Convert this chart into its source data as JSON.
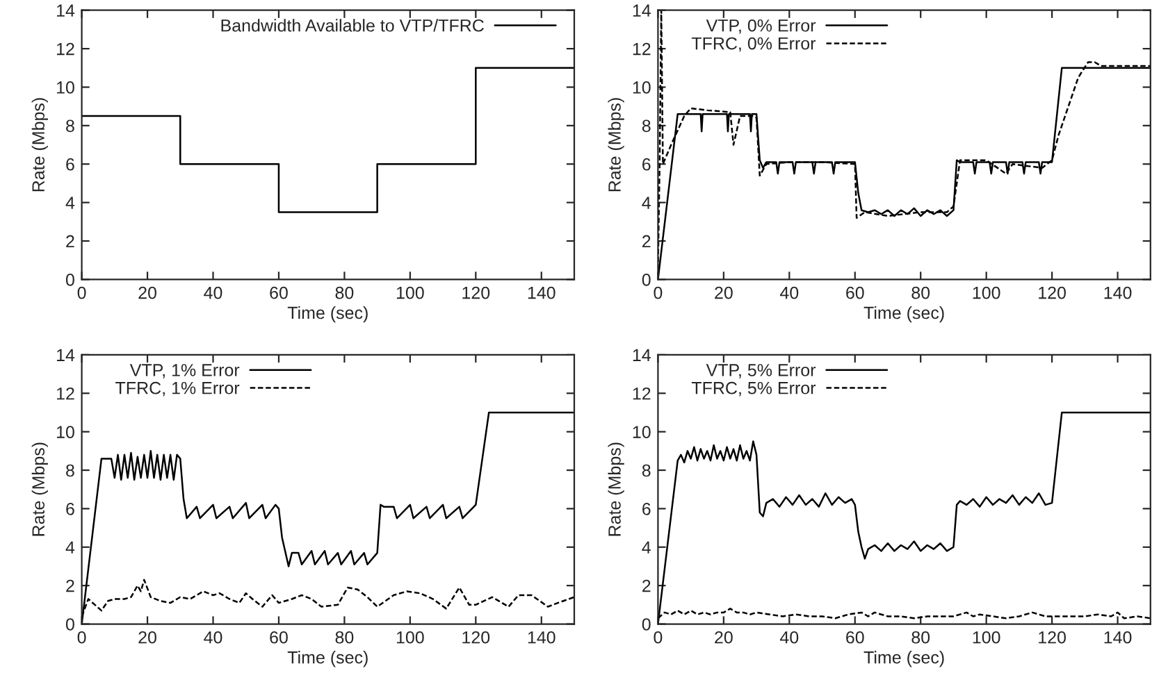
{
  "chart_data": [
    {
      "type": "line",
      "xlabel": "Time (sec)",
      "ylabel": "Rate (Mbps)",
      "xlim": [
        0,
        150
      ],
      "ylim": [
        0,
        14
      ],
      "xticks": [
        0,
        20,
        40,
        60,
        80,
        100,
        120,
        140
      ],
      "yticks": [
        0,
        2,
        4,
        6,
        8,
        10,
        12,
        14
      ],
      "grid": false,
      "legend": "top right",
      "series": [
        {
          "name": "Bandwidth Available to VTP/TFRC",
          "color": "#000000",
          "line_style": "solid",
          "x": [
            0,
            30,
            30,
            60,
            60,
            90,
            90,
            120,
            120,
            150
          ],
          "values": [
            8.5,
            8.5,
            6,
            6,
            3.5,
            3.5,
            6,
            6,
            11,
            11
          ]
        }
      ]
    },
    {
      "type": "line",
      "xlabel": "Time (sec)",
      "ylabel": "Rate (Mbps)",
      "xlim": [
        0,
        150
      ],
      "ylim": [
        0,
        14
      ],
      "xticks": [
        0,
        20,
        40,
        60,
        80,
        100,
        120,
        140
      ],
      "yticks": [
        0,
        2,
        4,
        6,
        8,
        10,
        12,
        14
      ],
      "grid": false,
      "legend": "top left",
      "series": [
        {
          "name": "VTP, 0% Error",
          "color": "#000000",
          "line_style": "solid",
          "x": [
            0,
            6,
            7,
            13,
            13.3,
            13.6,
            21,
            21.3,
            21.6,
            28,
            28.3,
            28.6,
            30,
            31,
            32,
            33,
            36,
            36.5,
            37,
            41,
            41.5,
            42,
            47,
            47.5,
            48,
            53,
            53.5,
            54,
            60,
            61,
            62,
            64,
            66,
            68,
            70,
            72,
            74,
            76,
            78,
            80,
            82,
            84,
            86,
            88,
            90,
            91,
            92,
            96,
            96.5,
            97,
            101,
            101.5,
            102,
            106,
            106.5,
            107,
            111,
            111.5,
            112,
            116,
            116.5,
            117,
            120,
            123,
            150
          ],
          "values": [
            0,
            8.6,
            8.6,
            8.6,
            7.7,
            8.6,
            8.6,
            7.7,
            8.6,
            8.6,
            7.7,
            8.6,
            8.6,
            6.2,
            5.8,
            6.1,
            6.1,
            5.5,
            6.1,
            6.1,
            5.5,
            6.1,
            6.1,
            5.5,
            6.1,
            6.1,
            5.5,
            6.1,
            6.1,
            4.5,
            3.6,
            3.5,
            3.6,
            3.4,
            3.6,
            3.3,
            3.6,
            3.4,
            3.7,
            3.3,
            3.6,
            3.4,
            3.6,
            3.3,
            3.6,
            6.2,
            6.1,
            6.1,
            5.5,
            6.1,
            6.1,
            5.5,
            6.1,
            6.1,
            5.5,
            6.1,
            6.1,
            5.5,
            6.1,
            6.1,
            5.5,
            6.1,
            6.1,
            11,
            11
          ]
        },
        {
          "name": "TFRC, 0% Error",
          "color": "#000000",
          "line_style": "dashed",
          "x": [
            0,
            0.5,
            1,
            1.5,
            4,
            8,
            10,
            15,
            22,
            23,
            25,
            29,
            30,
            31,
            33,
            40,
            50,
            60,
            60.5,
            63,
            70,
            80,
            88,
            90,
            92,
            100,
            106,
            108,
            117,
            120,
            122,
            125,
            128,
            131,
            133,
            135,
            150
          ],
          "values": [
            0.5,
            6,
            14,
            6,
            7,
            8.5,
            8.9,
            8.8,
            8.7,
            7,
            8.5,
            8.5,
            8.4,
            5.4,
            6,
            6.1,
            6.1,
            6,
            3.2,
            3.5,
            3.3,
            3.5,
            3.5,
            3.8,
            6.2,
            6.2,
            5.5,
            6,
            5.8,
            6.2,
            7.5,
            9,
            10.5,
            11.3,
            11.3,
            11.1,
            11.1
          ]
        }
      ]
    },
    {
      "type": "line",
      "xlabel": "Time (sec)",
      "ylabel": "Rate (Mbps)",
      "xlim": [
        0,
        150
      ],
      "ylim": [
        0,
        14
      ],
      "xticks": [
        0,
        20,
        40,
        60,
        80,
        100,
        120,
        140
      ],
      "yticks": [
        0,
        2,
        4,
        6,
        8,
        10,
        12,
        14
      ],
      "grid": false,
      "legend": "top left",
      "series": [
        {
          "name": "VTP, 1% Error",
          "color": "#000000",
          "line_style": "solid",
          "x": [
            0,
            6,
            9,
            10,
            11,
            12,
            13,
            14,
            15,
            16,
            17,
            18,
            19,
            20,
            21,
            22,
            23,
            24,
            25,
            26,
            27,
            28,
            29,
            30,
            31,
            32,
            35,
            36,
            40,
            41,
            45,
            46,
            50,
            51,
            55,
            56,
            59,
            60,
            61,
            63,
            64,
            66,
            67,
            70,
            71,
            74,
            75,
            78,
            79,
            82,
            83,
            86,
            87,
            90,
            91,
            92,
            95,
            96,
            100,
            101,
            105,
            106,
            110,
            111,
            115,
            116,
            120,
            124,
            150
          ],
          "values": [
            0,
            8.6,
            8.6,
            7.6,
            8.8,
            7.5,
            8.8,
            7.6,
            8.9,
            7.5,
            8.7,
            7.6,
            8.8,
            7.6,
            9,
            7.6,
            8.8,
            7.5,
            8.8,
            7.6,
            8.8,
            7.5,
            8.8,
            8.6,
            6.5,
            5.5,
            6.1,
            5.5,
            6.2,
            5.5,
            6.1,
            5.5,
            6.3,
            5.5,
            6.2,
            5.5,
            6.2,
            6,
            4.5,
            3,
            3.7,
            3.7,
            3.1,
            3.8,
            3.1,
            3.8,
            3.1,
            3.7,
            3.1,
            3.8,
            3.1,
            3.7,
            3.1,
            3.7,
            6.2,
            6.1,
            6.1,
            5.5,
            6.2,
            5.5,
            6.1,
            5.5,
            6.2,
            5.5,
            6.1,
            5.5,
            6.2,
            11,
            11
          ]
        },
        {
          "name": "TFRC, 1% Error",
          "color": "#000000",
          "line_style": "dashed",
          "x": [
            0,
            2,
            4,
            6,
            8,
            10,
            13,
            15,
            17,
            18,
            19,
            21,
            24,
            27,
            30,
            33,
            37,
            40,
            42,
            45,
            48,
            50,
            52,
            55,
            58,
            60,
            64,
            67,
            70,
            73,
            78,
            81,
            84,
            87,
            90,
            95,
            99,
            103,
            107,
            111,
            115,
            118,
            120,
            125,
            130,
            133,
            137,
            142,
            145,
            150
          ],
          "values": [
            0.4,
            1.3,
            1.0,
            0.7,
            1.2,
            1.3,
            1.3,
            1.4,
            2.0,
            1.7,
            2.3,
            1.4,
            1.2,
            1.1,
            1.4,
            1.3,
            1.7,
            1.5,
            1.6,
            1.3,
            1.1,
            1.6,
            1.3,
            0.9,
            1.5,
            1.1,
            1.3,
            1.5,
            1.3,
            0.9,
            1.0,
            1.9,
            1.8,
            1.4,
            0.9,
            1.5,
            1.7,
            1.6,
            1.3,
            0.8,
            1.9,
            1.0,
            1.0,
            1.4,
            0.9,
            1.5,
            1.5,
            0.9,
            1.1,
            1.4
          ]
        }
      ]
    },
    {
      "type": "line",
      "xlabel": "Time (sec)",
      "ylabel": "Rate (Mbps)",
      "xlim": [
        0,
        150
      ],
      "ylim": [
        0,
        14
      ],
      "xticks": [
        0,
        20,
        40,
        60,
        80,
        100,
        120,
        140
      ],
      "yticks": [
        0,
        2,
        4,
        6,
        8,
        10,
        12,
        14
      ],
      "grid": false,
      "legend": "top left",
      "series": [
        {
          "name": "VTP, 5% Error",
          "color": "#000000",
          "line_style": "solid",
          "x": [
            0,
            6,
            7,
            8,
            9,
            10,
            11,
            12,
            13,
            14,
            15,
            16,
            17,
            18,
            19,
            20,
            21,
            22,
            23,
            24,
            25,
            26,
            27,
            28,
            29,
            30,
            31,
            32,
            33,
            35,
            37,
            39,
            41,
            43,
            45,
            47,
            49,
            51,
            53,
            55,
            57,
            59,
            60,
            61,
            62,
            63,
            64,
            66,
            68,
            70,
            72,
            74,
            76,
            78,
            80,
            82,
            84,
            86,
            88,
            90,
            91,
            92,
            94,
            96,
            98,
            100,
            102,
            104,
            106,
            108,
            110,
            112,
            114,
            116,
            118,
            120,
            123,
            150
          ],
          "values": [
            0,
            8.5,
            8.8,
            8.4,
            9.0,
            8.6,
            9.2,
            8.5,
            9.1,
            8.6,
            9.0,
            8.5,
            9.3,
            8.6,
            9.0,
            8.5,
            9.2,
            8.6,
            9.1,
            8.5,
            9.3,
            8.6,
            9.0,
            8.5,
            9.5,
            8.8,
            5.8,
            5.6,
            6.3,
            6.5,
            6.1,
            6.6,
            6.2,
            6.7,
            6.2,
            6.5,
            6.1,
            6.8,
            6.2,
            6.6,
            6.3,
            6.5,
            6.2,
            4.8,
            4.0,
            3.4,
            3.9,
            4.1,
            3.8,
            4.2,
            3.8,
            4.1,
            3.9,
            4.3,
            3.8,
            4.1,
            3.9,
            4.2,
            3.8,
            4.0,
            6.2,
            6.4,
            6.2,
            6.5,
            6.1,
            6.6,
            6.2,
            6.5,
            6.3,
            6.7,
            6.2,
            6.6,
            6.3,
            6.8,
            6.2,
            6.3,
            11,
            11
          ]
        },
        {
          "name": "TFRC, 5% Error",
          "color": "#000000",
          "line_style": "dashed",
          "x": [
            0,
            2,
            4,
            6,
            8,
            10,
            12,
            14,
            16,
            18,
            20,
            22,
            24,
            26,
            28,
            30,
            34,
            38,
            42,
            46,
            50,
            54,
            58,
            62,
            64,
            66,
            70,
            74,
            78,
            82,
            86,
            90,
            94,
            96,
            98,
            102,
            106,
            110,
            114,
            118,
            122,
            126,
            130,
            134,
            138,
            140,
            142,
            146,
            150
          ],
          "values": [
            0.3,
            0.6,
            0.5,
            0.7,
            0.5,
            0.7,
            0.5,
            0.6,
            0.5,
            0.6,
            0.6,
            0.8,
            0.6,
            0.6,
            0.5,
            0.6,
            0.5,
            0.4,
            0.5,
            0.4,
            0.4,
            0.3,
            0.5,
            0.6,
            0.4,
            0.6,
            0.4,
            0.4,
            0.3,
            0.4,
            0.4,
            0.4,
            0.6,
            0.4,
            0.5,
            0.4,
            0.3,
            0.4,
            0.6,
            0.4,
            0.4,
            0.4,
            0.4,
            0.5,
            0.4,
            0.6,
            0.3,
            0.4,
            0.3
          ]
        }
      ]
    }
  ]
}
